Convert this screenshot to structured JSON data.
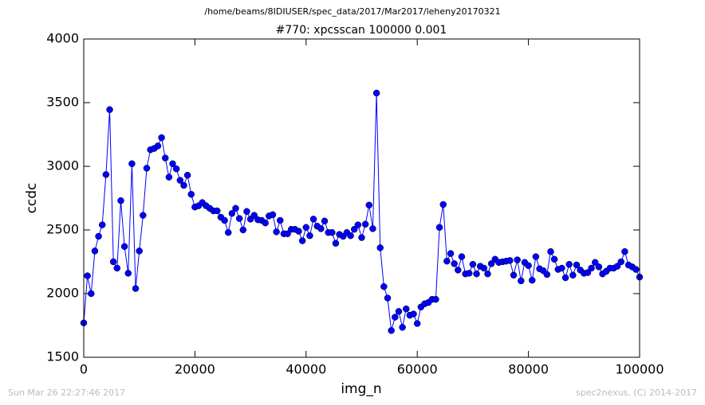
{
  "chart_data": {
    "type": "line",
    "suptitle": "/home/beams/8IDIUSER/spec_data/2017/Mar2017/leheny20170321",
    "title": "#770: xpcsscan 100000 0.001",
    "xlabel": "img_n",
    "ylabel": "ccdc",
    "footer_left": "Sun Mar 26 22:27:46 2017",
    "footer_right": "spec2nexus, (C) 2014-2017",
    "xlim": [
      0,
      100000
    ],
    "xticks": [
      0,
      20000,
      40000,
      60000,
      80000,
      100000
    ],
    "ylim": [
      1500,
      4000
    ],
    "yticks": [
      1500,
      2000,
      2500,
      3000,
      3500,
      4000
    ],
    "x": [
      0,
      667,
      1333,
      2000,
      2667,
      3333,
      4000,
      4667,
      5333,
      6000,
      6667,
      7333,
      8000,
      8667,
      9333,
      10000,
      10667,
      11333,
      12000,
      12667,
      13333,
      14000,
      14667,
      15333,
      16000,
      16667,
      17333,
      18000,
      18667,
      19333,
      20000,
      20667,
      21333,
      22000,
      22667,
      23333,
      24000,
      24667,
      25333,
      26000,
      26667,
      27333,
      28000,
      28667,
      29333,
      30000,
      30667,
      31333,
      32000,
      32667,
      33333,
      34000,
      34667,
      35333,
      36000,
      36667,
      37333,
      38000,
      38667,
      39333,
      40000,
      40667,
      41333,
      42000,
      42667,
      43333,
      44000,
      44667,
      45333,
      46000,
      46667,
      47333,
      48000,
      48667,
      49333,
      50000,
      50667,
      51333,
      52000,
      52667,
      53333,
      54000,
      54667,
      55333,
      56000,
      56667,
      57333,
      58000,
      58667,
      59333,
      60000,
      60667,
      61333,
      62000,
      62667,
      63333,
      64000,
      64667,
      65333,
      66000,
      66667,
      67333,
      68000,
      68667,
      69333,
      70000,
      70667,
      71333,
      72000,
      72667,
      73333,
      74000,
      74667,
      75333,
      76000,
      76667,
      77333,
      78000,
      78667,
      79333,
      80000,
      80667,
      81333,
      82000,
      82667,
      83333,
      84000,
      84667,
      85333,
      86000,
      86667,
      87333,
      88000,
      88667,
      89333,
      90000,
      90667,
      91333,
      92000,
      92667,
      93333,
      94000,
      94667,
      95333,
      96000,
      96667,
      97333,
      98000,
      98667,
      99333,
      100000
    ],
    "series": [
      {
        "color": "#0000ff",
        "values": [
          1770,
          2140,
          2000,
          2335,
          2450,
          2540,
          2935,
          3445,
          2250,
          2200,
          2730,
          2370,
          2160,
          3020,
          2040,
          2335,
          2615,
          2985,
          3130,
          3140,
          3160,
          3225,
          3065,
          2915,
          3020,
          2980,
          2890,
          2850,
          2930,
          2780,
          2680,
          2690,
          2715,
          2690,
          2670,
          2650,
          2650,
          2600,
          2575,
          2480,
          2630,
          2670,
          2590,
          2500,
          2645,
          2585,
          2615,
          2580,
          2575,
          2555,
          2610,
          2620,
          2485,
          2575,
          2470,
          2470,
          2505,
          2505,
          2490,
          2415,
          2520,
          2455,
          2585,
          2530,
          2510,
          2570,
          2480,
          2480,
          2395,
          2465,
          2450,
          2480,
          2455,
          2505,
          2540,
          2440,
          2545,
          2695,
          2510,
          3575,
          2360,
          2055,
          1965,
          1710,
          1815,
          1860,
          1735,
          1880,
          1830,
          1840,
          1765,
          1895,
          1920,
          1930,
          1955,
          1955,
          2520,
          2700,
          2255,
          2315,
          2235,
          2185,
          2290,
          2155,
          2160,
          2230,
          2155,
          2215,
          2200,
          2155,
          2235,
          2270,
          2245,
          2250,
          2255,
          2260,
          2145,
          2265,
          2100,
          2245,
          2220,
          2105,
          2290,
          2195,
          2180,
          2150,
          2330,
          2270,
          2190,
          2200,
          2125,
          2230,
          2145,
          2225,
          2185,
          2160,
          2165,
          2200,
          2245,
          2210,
          2155,
          2175,
          2200,
          2200,
          2215,
          2250,
          2330,
          2225,
          2210,
          2190,
          2130
        ]
      }
    ]
  }
}
